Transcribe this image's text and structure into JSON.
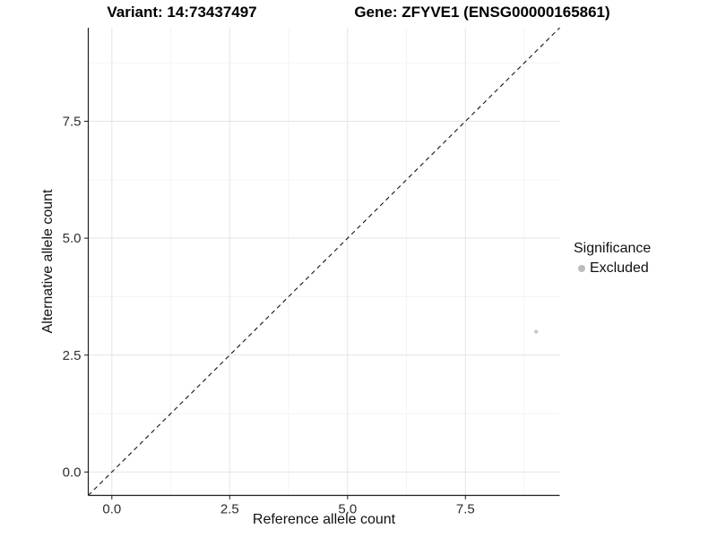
{
  "title": {
    "variant": "Variant: 14:73437497",
    "gene": "Gene: ZFYVE1 (ENSG00000165861)"
  },
  "legend": {
    "title": "Significance",
    "items": [
      {
        "label": "Excluded",
        "color": "#bdbdbd"
      }
    ]
  },
  "chart_data": {
    "type": "scatter",
    "title": "Variant: 14:73437497   Gene: ZFYVE1 (ENSG00000165861)",
    "xlabel": "Reference allele count",
    "ylabel": "Alternative allele count",
    "xlim": [
      -0.5,
      9.5
    ],
    "ylim": [
      -0.5,
      9.5
    ],
    "x_major_ticks": [
      0,
      2.5,
      5,
      7.5
    ],
    "y_major_ticks": [
      0,
      2.5,
      5,
      7.5
    ],
    "x_minor_ticks": [
      1.25,
      3.75,
      6.25,
      8.75
    ],
    "y_minor_ticks": [
      1.25,
      3.75,
      6.25,
      8.75
    ],
    "grid": true,
    "legend_position": "right",
    "series": [
      {
        "name": "Excluded",
        "color": "#c9c9c9",
        "point_radius": 2.2,
        "points": [
          {
            "x": 9,
            "y": 3
          }
        ]
      }
    ],
    "reference_line": {
      "kind": "abline",
      "slope": 1,
      "intercept": 0,
      "linetype": "dashed",
      "color": "#141414"
    }
  },
  "style_colors": {
    "grid_major": "#e4e4e4",
    "grid_minor": "#f2f2f2",
    "axis_line": "#1f1f1f",
    "tick_text": "#2e2e2e"
  }
}
